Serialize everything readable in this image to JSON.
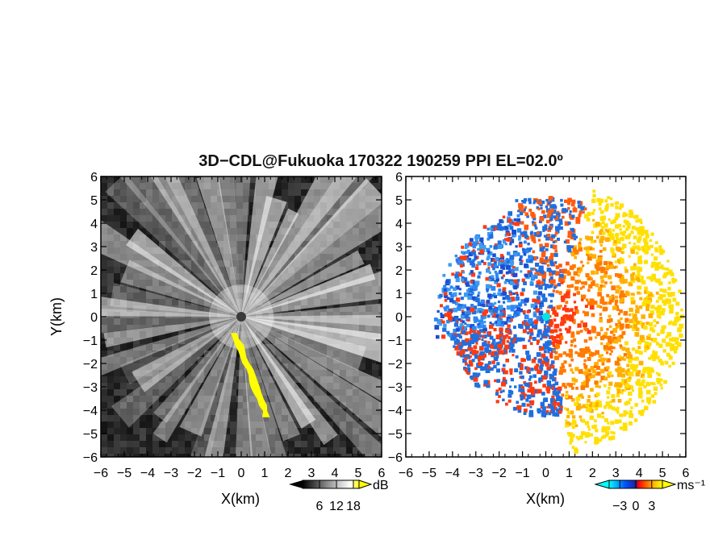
{
  "chart_data": [
    {
      "type": "heatmap",
      "panel": "left",
      "title": "3D−CDL@Fukuoka 170322 190259 PPI EL=02.0º",
      "xlabel": "X(km)",
      "ylabel": "Y(km)",
      "xlim": [
        -6,
        6
      ],
      "ylim": [
        -6,
        6
      ],
      "xticks": [
        "−6",
        "−5",
        "−4",
        "−3",
        "−2",
        "−1",
        "0",
        "1",
        "2",
        "3",
        "4",
        "5",
        "6"
      ],
      "yticks": [
        "6",
        "5",
        "4",
        "3",
        "2",
        "1",
        "0",
        "−1",
        "−2",
        "−3",
        "−4",
        "−5",
        "−6"
      ],
      "quantity": "SNR",
      "colorbar": {
        "unit": "dB",
        "ticks": [
          "6",
          "12",
          "18"
        ],
        "tick_values": [
          6,
          12,
          18
        ],
        "range": [
          0,
          20
        ],
        "colors": [
          "#000000",
          "#ffffff",
          "#ffff00"
        ]
      },
      "features": [
        {
          "name": "radial beams",
          "description": "white streaks radiating from origin, strongest toward east and north-east"
        },
        {
          "name": "high SNR strip",
          "color": "#ffff00",
          "from": [
            -0.3,
            -0.7
          ],
          "to": [
            1.1,
            -4.3
          ]
        }
      ]
    },
    {
      "type": "heatmap",
      "panel": "right",
      "xlabel": "X(km)",
      "xlim": [
        -6,
        6
      ],
      "ylim": [
        -6,
        6
      ],
      "xticks": [
        "−6",
        "−5",
        "−4",
        "−3",
        "−2",
        "−1",
        "0",
        "1",
        "2",
        "3",
        "4",
        "5",
        "6"
      ],
      "yticks": [
        "6",
        "5",
        "4",
        "3",
        "2",
        "1",
        "0",
        "−1",
        "−2",
        "−3",
        "−4",
        "−5",
        "−6"
      ],
      "quantity": "Doppler velocity",
      "colorbar": {
        "unit": "ms⁻¹",
        "ticks": [
          "−3",
          "0",
          "3"
        ],
        "tick_values": [
          -3,
          0,
          3
        ],
        "range": [
          -5,
          5
        ],
        "colors": [
          "#00ffff",
          "#0055ff",
          "#ff0000",
          "#ffa500",
          "#ffff00"
        ]
      },
      "features": [
        {
          "name": "negative sector",
          "color": "#1f6fe0",
          "azimuth_range_deg": [
            260,
            345
          ],
          "max_range_km": 5
        },
        {
          "name": "positive sector",
          "color": "#ff6a00",
          "azimuth_range_deg": [
            20,
            170
          ],
          "max_range_km": 6
        }
      ]
    }
  ]
}
